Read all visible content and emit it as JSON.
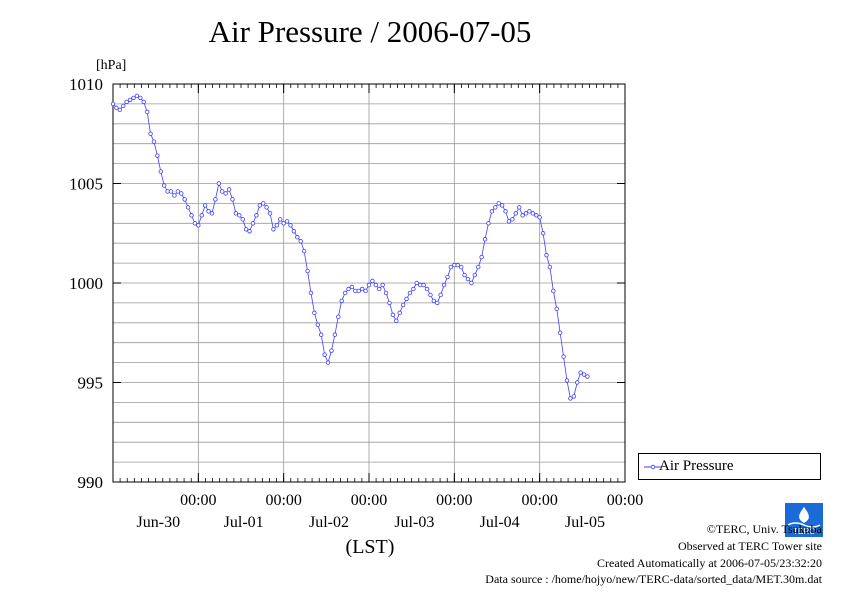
{
  "chart_data": {
    "type": "line",
    "title": "Air Pressure / 2006-07-05",
    "ylabel": "[hPa]",
    "xlabel": "(LST)",
    "ylim": [
      990,
      1010
    ],
    "yticks": [
      990,
      995,
      1000,
      1005,
      1010
    ],
    "ytick_labels": [
      "990",
      "995",
      "1000",
      "1005",
      "1010"
    ],
    "xlim": [
      -1,
      5
    ],
    "xticks": [
      {
        "x": 0,
        "time": "00:00",
        "date": "Jun-30"
      },
      {
        "x": 1,
        "time": "00:00",
        "date": "Jul-01"
      },
      {
        "x": 2,
        "time": "00:00",
        "date": "Jul-02"
      },
      {
        "x": 3,
        "time": "00:00",
        "date": "Jul-03"
      },
      {
        "x": 4,
        "time": "00:00",
        "date": "Jul-04"
      },
      {
        "x": 5,
        "time": "00:00",
        "date": "Jul-05"
      }
    ],
    "grid": true,
    "legend_position": "right",
    "series": [
      {
        "name": "Air Pressure",
        "color": "#3f3fff",
        "points": [
          [
            -1.0,
            1009.0
          ],
          [
            -0.96,
            1008.8
          ],
          [
            -0.92,
            1008.7
          ],
          [
            -0.88,
            1008.9
          ],
          [
            -0.84,
            1009.1
          ],
          [
            -0.8,
            1009.2
          ],
          [
            -0.76,
            1009.3
          ],
          [
            -0.72,
            1009.4
          ],
          [
            -0.68,
            1009.3
          ],
          [
            -0.64,
            1009.1
          ],
          [
            -0.6,
            1008.6
          ],
          [
            -0.56,
            1007.5
          ],
          [
            -0.52,
            1007.1
          ],
          [
            -0.48,
            1006.4
          ],
          [
            -0.44,
            1005.6
          ],
          [
            -0.4,
            1004.9
          ],
          [
            -0.36,
            1004.6
          ],
          [
            -0.32,
            1004.6
          ],
          [
            -0.28,
            1004.4
          ],
          [
            -0.24,
            1004.6
          ],
          [
            -0.2,
            1004.5
          ],
          [
            -0.16,
            1004.2
          ],
          [
            -0.12,
            1003.8
          ],
          [
            -0.08,
            1003.4
          ],
          [
            -0.04,
            1003.0
          ],
          [
            0.0,
            1002.9
          ],
          [
            0.04,
            1003.4
          ],
          [
            0.08,
            1003.9
          ],
          [
            0.12,
            1003.6
          ],
          [
            0.16,
            1003.5
          ],
          [
            0.2,
            1004.2
          ],
          [
            0.24,
            1005.0
          ],
          [
            0.28,
            1004.6
          ],
          [
            0.32,
            1004.5
          ],
          [
            0.36,
            1004.7
          ],
          [
            0.4,
            1004.2
          ],
          [
            0.44,
            1003.5
          ],
          [
            0.48,
            1003.4
          ],
          [
            0.52,
            1003.2
          ],
          [
            0.56,
            1002.7
          ],
          [
            0.6,
            1002.6
          ],
          [
            0.64,
            1003.0
          ],
          [
            0.68,
            1003.4
          ],
          [
            0.72,
            1003.9
          ],
          [
            0.76,
            1004.0
          ],
          [
            0.8,
            1003.8
          ],
          [
            0.84,
            1003.5
          ],
          [
            0.88,
            1002.7
          ],
          [
            0.92,
            1002.9
          ],
          [
            0.96,
            1003.2
          ],
          [
            1.0,
            1003.0
          ],
          [
            1.04,
            1003.1
          ],
          [
            1.08,
            1002.9
          ],
          [
            1.12,
            1002.6
          ],
          [
            1.16,
            1002.3
          ],
          [
            1.2,
            1002.1
          ],
          [
            1.24,
            1001.6
          ],
          [
            1.28,
            1000.6
          ],
          [
            1.32,
            999.5
          ],
          [
            1.36,
            998.5
          ],
          [
            1.4,
            997.9
          ],
          [
            1.44,
            997.4
          ],
          [
            1.48,
            996.4
          ],
          [
            1.52,
            996.0
          ],
          [
            1.56,
            996.6
          ],
          [
            1.6,
            997.4
          ],
          [
            1.64,
            998.3
          ],
          [
            1.68,
            999.1
          ],
          [
            1.72,
            999.5
          ],
          [
            1.76,
            999.7
          ],
          [
            1.8,
            999.8
          ],
          [
            1.84,
            999.6
          ],
          [
            1.88,
            999.6
          ],
          [
            1.92,
            999.7
          ],
          [
            1.96,
            999.6
          ],
          [
            2.0,
            999.9
          ],
          [
            2.04,
            1000.1
          ],
          [
            2.08,
            999.9
          ],
          [
            2.12,
            999.7
          ],
          [
            2.16,
            999.9
          ],
          [
            2.2,
            999.5
          ],
          [
            2.24,
            999.0
          ],
          [
            2.28,
            998.4
          ],
          [
            2.32,
            998.1
          ],
          [
            2.36,
            998.5
          ],
          [
            2.4,
            998.9
          ],
          [
            2.44,
            999.2
          ],
          [
            2.48,
            999.5
          ],
          [
            2.52,
            999.7
          ],
          [
            2.56,
            1000.0
          ],
          [
            2.6,
            999.9
          ],
          [
            2.64,
            999.9
          ],
          [
            2.68,
            999.7
          ],
          [
            2.72,
            999.4
          ],
          [
            2.76,
            999.1
          ],
          [
            2.8,
            999.0
          ],
          [
            2.84,
            999.4
          ],
          [
            2.88,
            999.9
          ],
          [
            2.92,
            1000.3
          ],
          [
            2.96,
            1000.8
          ],
          [
            3.0,
            1000.9
          ],
          [
            3.04,
            1000.9
          ],
          [
            3.08,
            1000.8
          ],
          [
            3.12,
            1000.4
          ],
          [
            3.16,
            1000.2
          ],
          [
            3.2,
            1000.0
          ],
          [
            3.24,
            1000.4
          ],
          [
            3.28,
            1000.8
          ],
          [
            3.32,
            1001.3
          ],
          [
            3.36,
            1002.2
          ],
          [
            3.4,
            1003.0
          ],
          [
            3.44,
            1003.6
          ],
          [
            3.48,
            1003.8
          ],
          [
            3.52,
            1004.0
          ],
          [
            3.56,
            1003.9
          ],
          [
            3.6,
            1003.6
          ],
          [
            3.64,
            1003.1
          ],
          [
            3.68,
            1003.2
          ],
          [
            3.72,
            1003.5
          ],
          [
            3.76,
            1003.8
          ],
          [
            3.8,
            1003.4
          ],
          [
            3.84,
            1003.5
          ],
          [
            3.88,
            1003.6
          ],
          [
            3.92,
            1003.5
          ],
          [
            3.96,
            1003.4
          ],
          [
            4.0,
            1003.3
          ],
          [
            4.04,
            1002.5
          ],
          [
            4.08,
            1001.4
          ],
          [
            4.12,
            1000.8
          ],
          [
            4.16,
            999.6
          ],
          [
            4.2,
            998.7
          ],
          [
            4.24,
            997.5
          ],
          [
            4.28,
            996.3
          ],
          [
            4.32,
            995.1
          ],
          [
            4.36,
            994.2
          ],
          [
            4.4,
            994.3
          ],
          [
            4.44,
            995.0
          ],
          [
            4.48,
            995.5
          ],
          [
            4.52,
            995.4
          ],
          [
            4.56,
            995.3
          ]
        ]
      }
    ]
  },
  "credits": {
    "copyright": "©TERC, Univ. Tsukuba",
    "observed": "Observed at TERC Tower site",
    "created": "Created Automatically at 2006-07-05/23:32:20",
    "source": "Data source : /home/hojyo/new/TERC-data/sorted_data/MET.30m.dat",
    "logo_text": "TERC"
  }
}
